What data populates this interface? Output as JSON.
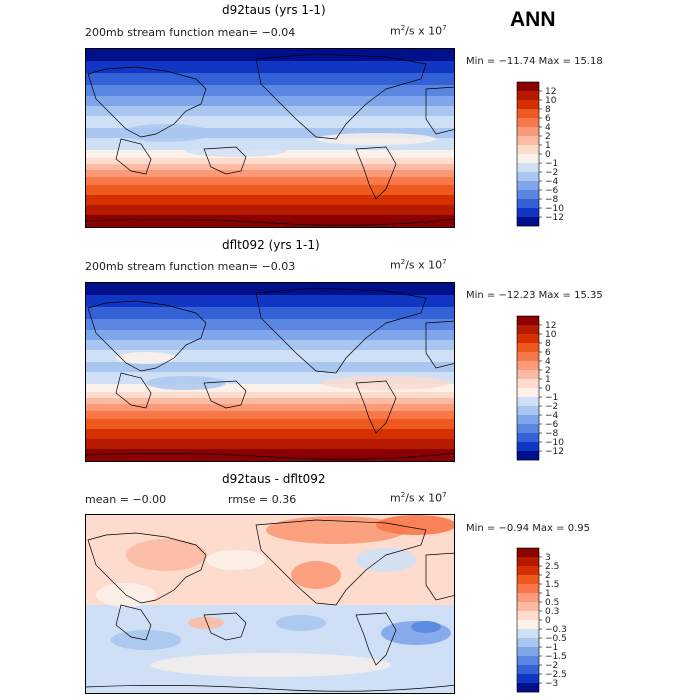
{
  "season": "ANN",
  "units_base": "m",
  "units_exp1": "2",
  "units_mid": "/s x 10",
  "units_exp2": "7",
  "panels": [
    {
      "title": "d92taus (yrs 1-1)",
      "subtitle": "200mb stream function  mean=  −0.04",
      "minmax": "Min = −11.74 Max =  15.18",
      "levels": [
        "12",
        "10",
        "8",
        "6",
        "4",
        "2",
        "1",
        "0",
        "−1",
        "−2",
        "−4",
        "−6",
        "−8",
        "−10",
        "−12"
      ],
      "colors": [
        "#8b0000",
        "#b51a00",
        "#d73000",
        "#ee5a1e",
        "#f8784a",
        "#fb9a78",
        "#fcbaa2",
        "#fddbcd",
        "#fbf1ea",
        "#cfe0f6",
        "#a9c6f0",
        "#7fa6ea",
        "#5a86e2",
        "#3462d6",
        "#1236c4",
        "#00108a"
      ]
    },
    {
      "title": "dflt092 (yrs 1-1)",
      "subtitle": "200mb stream function  mean=  −0.03",
      "minmax": "Min = −12.23 Max =  15.35",
      "levels": [
        "12",
        "10",
        "8",
        "6",
        "4",
        "2",
        "1",
        "0",
        "−1",
        "−2",
        "−4",
        "−6",
        "−8",
        "−10",
        "−12"
      ],
      "colors": [
        "#8b0000",
        "#b51a00",
        "#d73000",
        "#ee5a1e",
        "#f8784a",
        "#fb9a78",
        "#fcbaa2",
        "#fddbcd",
        "#fbf1ea",
        "#cfe0f6",
        "#a9c6f0",
        "#7fa6ea",
        "#5a86e2",
        "#3462d6",
        "#1236c4",
        "#00108a"
      ]
    },
    {
      "title": "d92taus - dflt092",
      "subtitle_mean": "mean =   −0.00",
      "subtitle_rmse": "rmse =    0.36",
      "minmax": "Min = −0.94 Max =  0.95",
      "levels": [
        "3",
        "2.5",
        "2",
        "1.5",
        "1",
        "0.5",
        "0.3",
        "0",
        "−0.3",
        "−0.5",
        "−1",
        "−1.5",
        "−2",
        "−2.5",
        "−3"
      ],
      "colors": [
        "#8b0000",
        "#b51a00",
        "#d73000",
        "#ee5a1e",
        "#f8784a",
        "#fb9a78",
        "#fcbaa2",
        "#fddbcd",
        "#fbf1ea",
        "#cfe0f6",
        "#a9c6f0",
        "#7fa6ea",
        "#5a86e2",
        "#3462d6",
        "#1236c4",
        "#00108a"
      ]
    }
  ],
  "chart_data": [
    {
      "type": "heatmap",
      "title": "d92taus (yrs 1-1)",
      "variable": "200mb stream function",
      "mean": -0.04,
      "min": -11.74,
      "max": 15.18,
      "contour_levels": [
        -12,
        -10,
        -8,
        -6,
        -4,
        -2,
        -1,
        0,
        1,
        2,
        4,
        6,
        8,
        10,
        12
      ],
      "zonal_pattern": "strongly negative at northern high latitudes, near zero in tropics, strongly positive at southern high latitudes"
    },
    {
      "type": "heatmap",
      "title": "dflt092 (yrs 1-1)",
      "variable": "200mb stream function",
      "mean": -0.03,
      "min": -12.23,
      "max": 15.35,
      "contour_levels": [
        -12,
        -10,
        -8,
        -6,
        -4,
        -2,
        -1,
        0,
        1,
        2,
        4,
        6,
        8,
        10,
        12
      ],
      "zonal_pattern": "strongly negative at northern high latitudes, near zero in tropics, strongly positive at southern high latitudes"
    },
    {
      "type": "heatmap",
      "title": "d92taus - dflt092",
      "mean": -0.0,
      "rmse": 0.36,
      "min": -0.94,
      "max": 0.95,
      "contour_levels": [
        -3,
        -2.5,
        -2,
        -1.5,
        -1,
        -0.5,
        -0.3,
        0,
        0.3,
        0.5,
        1,
        1.5,
        2,
        2.5,
        3
      ],
      "zonal_pattern": "weak positive in northern hemisphere, weak negative in southern hemisphere"
    }
  ]
}
